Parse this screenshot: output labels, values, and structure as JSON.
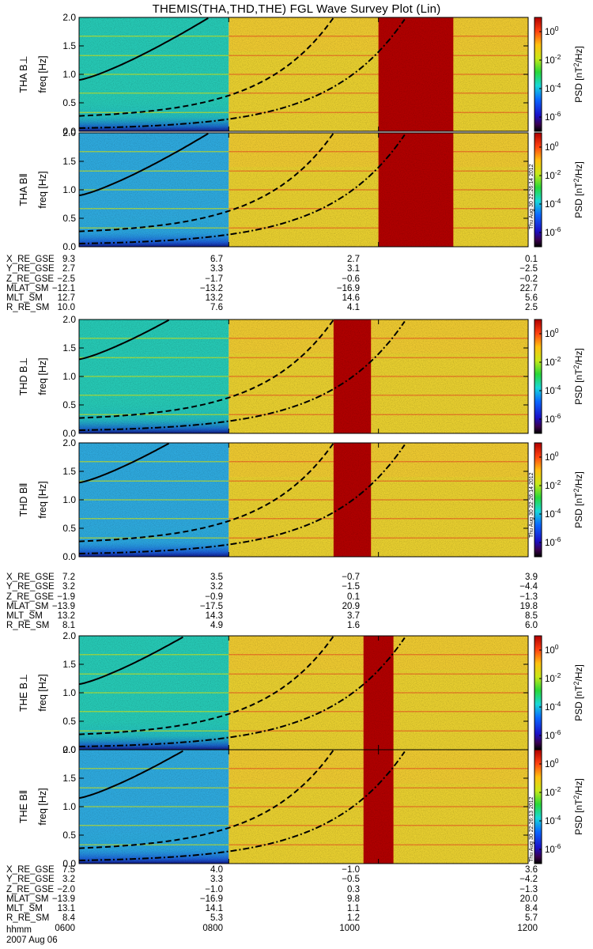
{
  "title": "THEMIS(THA,THD,THE) FGL Wave Survey Plot (Lin)",
  "colors": {
    "bg": "#ffffff",
    "axis": "#000000"
  },
  "chart_data": {
    "type": "heatmap",
    "xlabel": "hhmm",
    "date": "2007 Aug 06",
    "x_ticks": [
      "0600",
      "0800",
      "1000",
      "1200"
    ],
    "x_range_hours": [
      6,
      12
    ],
    "ylabel": "freq [Hz]",
    "ylim": [
      0,
      2.0
    ],
    "y_ticks": [
      "0.0",
      "0.5",
      "1.0",
      "1.5",
      "2.0"
    ],
    "colorbar": {
      "label_html": "PSD [nT<sup>2</sup>/Hz]",
      "ticks": [
        "10^0",
        "10^-2",
        "10^-4",
        "10^-6"
      ],
      "range_log10": [
        -7,
        1
      ]
    },
    "panels": [
      {
        "name": "THA B⊥",
        "probe": "THA"
      },
      {
        "name": "THA B‖",
        "probe": "THA"
      },
      {
        "name": "THD B⊥",
        "probe": "THD"
      },
      {
        "name": "THD B‖",
        "probe": "THD"
      },
      {
        "name": "THE B⊥",
        "probe": "THE"
      },
      {
        "name": "THE B‖",
        "probe": "THE"
      }
    ],
    "probes": [
      {
        "probe": "THA",
        "boundary_hour": 8.0,
        "intense_band": [
          10.0,
          11.0
        ],
        "solid_start": 0.9,
        "stamp": "Thu Aug 30 22:26:14 2012"
      },
      {
        "probe": "THD",
        "boundary_hour": 8.0,
        "intense_band": [
          9.4,
          9.9
        ],
        "solid_start": 1.3,
        "stamp": "Thu Aug 30 22:26:14 2012"
      },
      {
        "probe": "THE",
        "boundary_hour": 8.0,
        "intense_band": [
          9.8,
          10.2
        ],
        "solid_start": 1.15,
        "stamp": "Thu Aug 30 22:26:13 2012"
      }
    ],
    "ephemeris": [
      {
        "probe": "THA",
        "rows": [
          {
            "label": "X_RE_GSE",
            "values": [
              "9.3",
              "6.7",
              "2.7",
              "0.1"
            ]
          },
          {
            "label": "Y_RE_GSE",
            "values": [
              "2.7",
              "3.3",
              "3.1",
              "−2.5"
            ]
          },
          {
            "label": "Z_RE_GSE",
            "values": [
              "−2.5",
              "−1.7",
              "−0.6",
              "−0.2"
            ]
          },
          {
            "label": "MLAT_SM",
            "values": [
              "−12.1",
              "−13.2",
              "−16.9",
              "22.7"
            ]
          },
          {
            "label": "MLT_SM",
            "values": [
              "12.7",
              "13.2",
              "14.6",
              "5.6"
            ]
          },
          {
            "label": "R_RE_SM",
            "values": [
              "10.0",
              "7.6",
              "4.1",
              "2.5"
            ]
          }
        ]
      },
      {
        "probe": "THD",
        "rows": [
          {
            "label": "X_RE_GSE",
            "values": [
              "7.2",
              "3.5",
              "−0.7",
              "3.9"
            ]
          },
          {
            "label": "Y_RE_GSE",
            "values": [
              "3.2",
              "3.2",
              "−1.5",
              "−4.4"
            ]
          },
          {
            "label": "Z_RE_GSE",
            "values": [
              "−1.9",
              "−0.9",
              "0.1",
              "−1.3"
            ]
          },
          {
            "label": "MLAT_SM",
            "values": [
              "−13.9",
              "−17.5",
              "20.9",
              "19.8"
            ]
          },
          {
            "label": "MLT_SM",
            "values": [
              "13.2",
              "14.3",
              "3.7",
              "8.5"
            ]
          },
          {
            "label": "R_RE_SM",
            "values": [
              "8.1",
              "4.9",
              "1.6",
              "6.0"
            ]
          }
        ]
      },
      {
        "probe": "THE",
        "rows": [
          {
            "label": "X_RE_GSE",
            "values": [
              "7.5",
              "4.0",
              "−1.0",
              "3.6"
            ]
          },
          {
            "label": "Y_RE_GSE",
            "values": [
              "3.2",
              "3.3",
              "−0.5",
              "−4.2"
            ]
          },
          {
            "label": "Z_RE_GSE",
            "values": [
              "−2.0",
              "−1.0",
              "0.3",
              "−1.3"
            ]
          },
          {
            "label": "MLAT_SM",
            "values": [
              "−13.9",
              "−16.9",
              "9.8",
              "20.0"
            ]
          },
          {
            "label": "MLT_SM",
            "values": [
              "13.1",
              "14.1",
              "1.1",
              "8.4"
            ]
          },
          {
            "label": "R_RE_SM",
            "values": [
              "8.4",
              "5.3",
              "1.2",
              "5.7"
            ]
          }
        ]
      }
    ]
  }
}
